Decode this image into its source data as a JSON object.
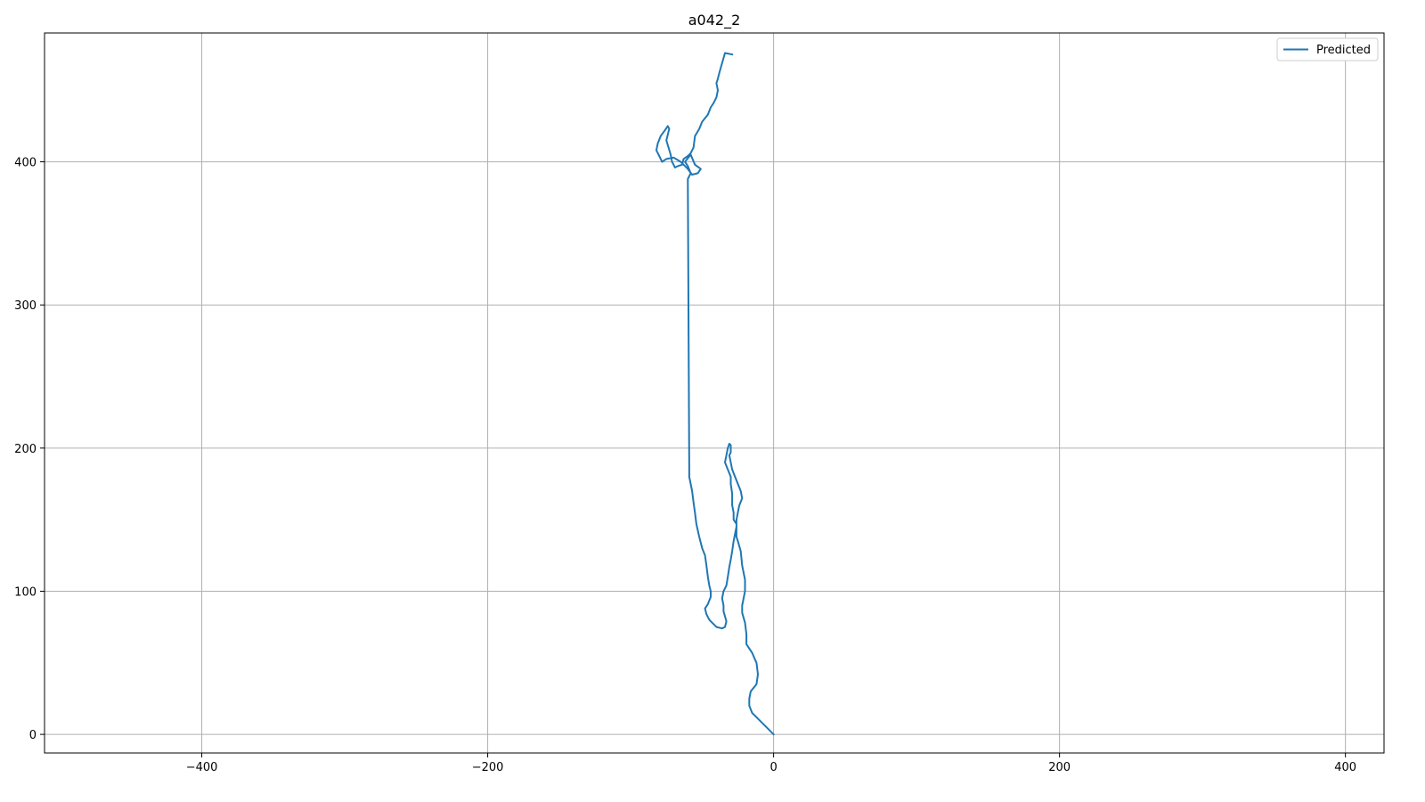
{
  "chart_data": {
    "type": "line",
    "title": "a042_2",
    "xlabel": "",
    "ylabel": "",
    "xlim": [
      -510,
      427
    ],
    "ylim": [
      -13,
      490
    ],
    "x_ticks": [
      -400,
      -200,
      0,
      200,
      400
    ],
    "x_tick_labels": [
      "−400",
      "−200",
      "0",
      "200",
      "400"
    ],
    "y_ticks": [
      0,
      100,
      200,
      300,
      400
    ],
    "y_tick_labels": [
      "0",
      "100",
      "200",
      "300",
      "400"
    ],
    "grid": true,
    "legend_position": "top-right",
    "series": [
      {
        "name": "Predicted",
        "color": "#1f77b4",
        "x": [
          0,
          -5,
          -10,
          -15,
          -17,
          -17,
          -16,
          -12,
          -11,
          -12,
          -15,
          -19,
          -19,
          -20,
          -22,
          -22,
          -21,
          -20,
          -20,
          -22,
          -23,
          -25,
          -26,
          -26,
          -26,
          -28,
          -28,
          -29,
          -29,
          -30,
          -30,
          -32,
          -34,
          -33,
          -32,
          -31,
          -30,
          -30,
          -30,
          -31,
          -30,
          -29,
          -27,
          -25,
          -23,
          -22,
          -24,
          -25,
          -26,
          -26,
          -27,
          -28,
          -29,
          -30,
          -31,
          -32,
          -33,
          -35,
          -36,
          -35,
          -35,
          -33,
          -34,
          -36,
          -40,
          -45,
          -47,
          -48,
          -46,
          -44,
          -44,
          -45,
          -46,
          -47,
          -48,
          -50,
          -52,
          -54,
          -55,
          -56,
          -57,
          -59,
          -59,
          -60,
          -58,
          -60,
          -62,
          -58,
          -55,
          -51,
          -53,
          -57,
          -60,
          -65,
          -70,
          -75,
          -78,
          -80,
          -82,
          -81,
          -79,
          -76,
          -74,
          -73,
          -75,
          -72,
          -71,
          -70,
          -69,
          -67,
          -64,
          -63,
          -60,
          -58,
          -56,
          -55,
          -52,
          -50,
          -46,
          -44,
          -42,
          -40,
          -39,
          -40,
          -39,
          -38,
          -34,
          -29
        ],
        "y": [
          0,
          5,
          10,
          15,
          20,
          25,
          30,
          35,
          42,
          50,
          57,
          63,
          70,
          78,
          85,
          90,
          95,
          100,
          108,
          118,
          128,
          135,
          138,
          142,
          147,
          150,
          155,
          160,
          168,
          175,
          180,
          185,
          190,
          195,
          200,
          203,
          202,
          199,
          197,
          195,
          190,
          185,
          180,
          175,
          170,
          165,
          160,
          155,
          150,
          145,
          140,
          135,
          128,
          122,
          117,
          110,
          104,
          100,
          95,
          90,
          86,
          79,
          75,
          74,
          75,
          80,
          84,
          88,
          91,
          96,
          100,
          104,
          110,
          118,
          125,
          130,
          138,
          147,
          155,
          162,
          170,
          180,
          185,
          388,
          392,
          397,
          400,
          405,
          398,
          395,
          392,
          391,
          395,
          400,
          403,
          402,
          400,
          404,
          408,
          413,
          418,
          422,
          425,
          423,
          415,
          405,
          400,
          398,
          396,
          397,
          398,
          402,
          404,
          406,
          410,
          418,
          423,
          428,
          433,
          438,
          441,
          445,
          450,
          455,
          458,
          462,
          476,
          475
        ]
      }
    ]
  }
}
